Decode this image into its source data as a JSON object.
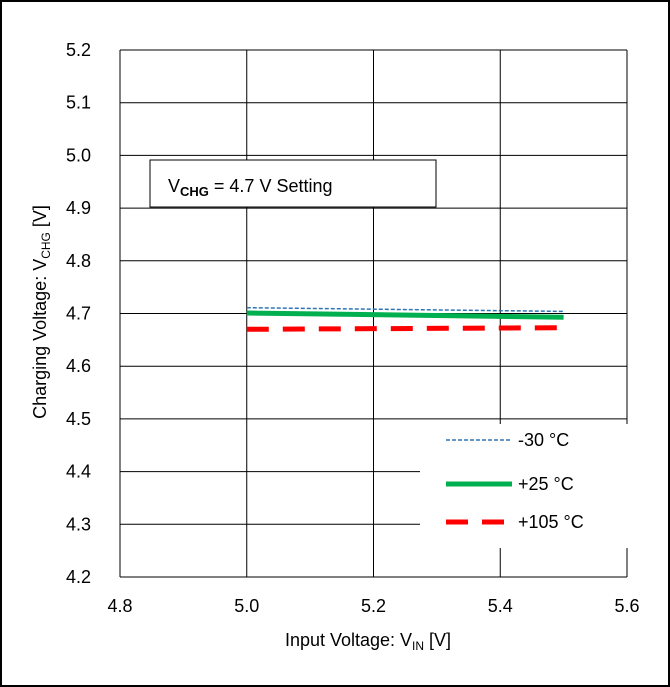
{
  "chart_data": {
    "type": "line",
    "xlabel": {
      "main": "Input Voltage: V",
      "sub": "IN",
      "unit": " [V]"
    },
    "ylabel": {
      "main": "Charging Voltage: V",
      "sub": "CHG",
      "unit": " [V]"
    },
    "xlim": [
      4.8,
      5.6
    ],
    "ylim": [
      4.2,
      5.2
    ],
    "x_ticks": [
      "4.8",
      "5.0",
      "5.2",
      "5.4",
      "5.6"
    ],
    "y_ticks": [
      "5.2",
      "5.1",
      "5.0",
      "4.9",
      "4.8",
      "4.7",
      "4.6",
      "4.5",
      "4.4",
      "4.3",
      "4.2"
    ],
    "grid": true,
    "legend_position": "bottom-right",
    "annotation": {
      "prefix": "V",
      "sub": "CHG",
      "suffix": " = 4.7 V Setting"
    },
    "series": [
      {
        "name": "-30 °C",
        "color": "#2E75B6",
        "style": "dashed-thin",
        "x": [
          5.0,
          5.5
        ],
        "y": [
          4.711,
          4.704
        ]
      },
      {
        "name": "+25 °C",
        "color": "#00B050",
        "style": "solid-thick",
        "x": [
          5.0,
          5.5
        ],
        "y": [
          4.701,
          4.693
        ]
      },
      {
        "name": "+105 °C",
        "color": "#FF0000",
        "style": "dashed-thick",
        "x": [
          5.0,
          5.5
        ],
        "y": [
          4.67,
          4.673
        ]
      }
    ]
  }
}
